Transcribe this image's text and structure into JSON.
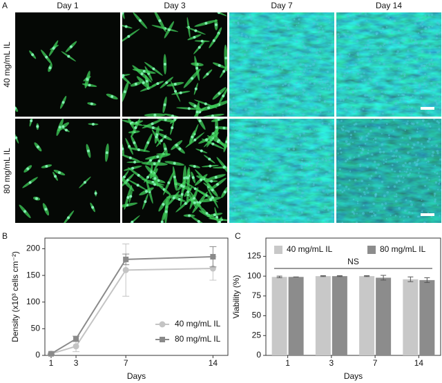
{
  "figure_a": {
    "panel": "A",
    "columns": [
      "Day 1",
      "Day 3",
      "Day 7",
      "Day 14"
    ],
    "rows": [
      "40 mg/mL IL",
      "80 mg/mL IL"
    ]
  },
  "chart_data": [
    {
      "panel": "B",
      "type": "line",
      "x": [
        1,
        3,
        7,
        14
      ],
      "xlim": [
        0.5,
        15.2
      ],
      "xticks": [
        1,
        3,
        7,
        14
      ],
      "ylim": [
        0,
        220
      ],
      "yticks": [
        0,
        50,
        100,
        150,
        200
      ],
      "xlabel": "Days",
      "ylabel": "Density (x10³ cells cm⁻²)",
      "legend": "lower right",
      "series": [
        {
          "name": "40 mg/mL IL",
          "color": "#c4c4c4",
          "marker": "circle",
          "values": [
            3,
            17,
            160,
            163
          ],
          "errors": [
            1,
            10,
            49,
            22
          ]
        },
        {
          "name": "80 mg/mL IL",
          "color": "#8a8a8a",
          "marker": "square",
          "values": [
            3,
            31,
            180,
            185
          ],
          "errors": [
            1,
            5,
            10,
            19
          ]
        }
      ]
    },
    {
      "panel": "C",
      "type": "bar",
      "categories": [
        "1",
        "3",
        "7",
        "14"
      ],
      "ylim": [
        0,
        148
      ],
      "yticks": [
        0,
        25,
        50,
        75,
        100,
        125
      ],
      "xlabel": "Days",
      "ylabel": "Viability (%)",
      "legend": "upper",
      "annotation": "NS",
      "series": [
        {
          "name": "40 mg/mL IL",
          "color": "#c8c8c8",
          "values": [
            99,
            100,
            100,
            96
          ],
          "errors": [
            1,
            0.5,
            0.5,
            3
          ]
        },
        {
          "name": "80 mg/mL IL",
          "color": "#8c8c8c",
          "values": [
            99,
            100,
            98,
            95
          ],
          "errors": [
            0,
            0.5,
            3,
            3
          ]
        }
      ]
    }
  ]
}
